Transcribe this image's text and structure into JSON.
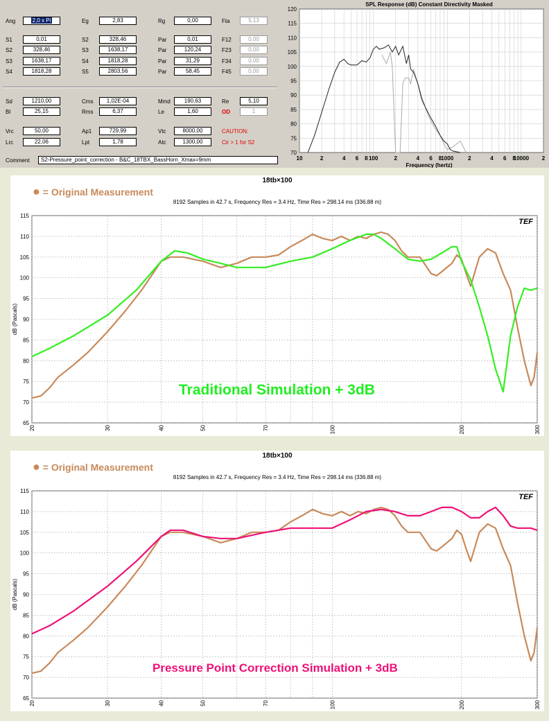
{
  "params": {
    "rows1": [
      {
        "l1": "Ang",
        "v1": "2,0 x Pi",
        "l2": "Eg",
        "v2": "2,83",
        "l3": "Rg",
        "v3": "0,00",
        "l4": "Fta",
        "v4": "5,13"
      },
      {
        "l1": "S1",
        "v1": "0,01",
        "l2": "S2",
        "v2": "328,46",
        "l3": "Par",
        "v3": "0,01",
        "l4": "F12",
        "v4": "0,00"
      },
      {
        "l1": "S2",
        "v1": "328,46",
        "l2": "S3",
        "v2": "1638,17",
        "l3": "Par",
        "v3": "120,24",
        "l4": "F23",
        "v4": "0,00"
      },
      {
        "l1": "S3",
        "v1": "1638,17",
        "l2": "S4",
        "v2": "1818,28",
        "l3": "Par",
        "v3": "31,29",
        "l4": "F34",
        "v4": "0,00"
      },
      {
        "l1": "S4",
        "v1": "1818,28",
        "l2": "S5",
        "v2": "2803,56",
        "l3": "Par",
        "v3": "58,45",
        "l4": "F45",
        "v4": "0,00"
      }
    ],
    "rows2": [
      {
        "l1": "Sd",
        "v1": "1210,00",
        "l2": "Cms",
        "v2": "1,02E-04",
        "l3": "Mmd",
        "v3": "190,63",
        "l4": "Re",
        "v4": "5,10"
      },
      {
        "l1": "Bl",
        "v1": "25,15",
        "l2": "Rms",
        "v2": "6,37",
        "l3": "Le",
        "v3": "1,60",
        "l4": "OD",
        "v4": "1"
      }
    ],
    "rows3": [
      {
        "l1": "Vrc",
        "v1": "50,00",
        "l2": "Ap1",
        "v2": "729,99",
        "l3": "Vtc",
        "v3": "8000,00",
        "l4": "CAUTION:"
      },
      {
        "l1": "Lrc",
        "v1": "22,06",
        "l2": "Lpt",
        "v2": "1,78",
        "l3": "Atc",
        "v3": "1300,00",
        "l4": "Cir > 1 for S2"
      }
    ],
    "comment_label": "Comment",
    "comment": "S2-Pressure_point_correction - B&C_18TBX_BassHorn_Xmax=9mm"
  },
  "colors": {
    "measurement": "#c8895a",
    "traditional": "#33ee22",
    "pressure": "#ee1177",
    "sim_dark": "#222222",
    "sim_light": "#aaaaaa"
  },
  "spl_tag": "TEF",
  "chart_data": [
    {
      "type": "line",
      "title": "SPL Response (dB)   Constant Directivity   Masked",
      "xlabel": "Frequency (hertz)",
      "xscale": "log",
      "xlim": [
        10,
        20000
      ],
      "ylim": [
        70,
        120
      ],
      "yticks": [
        70,
        75,
        80,
        85,
        90,
        95,
        100,
        105,
        110,
        115,
        120
      ],
      "xtick_labels": [
        "10",
        "2",
        "4",
        "6",
        "8",
        "100",
        "2",
        "4",
        "6",
        "8",
        "1000",
        "2",
        "4",
        "6",
        "8",
        "10000",
        "2"
      ],
      "xtick_values": [
        10,
        20,
        40,
        60,
        80,
        100,
        200,
        400,
        600,
        800,
        1000,
        2000,
        4000,
        6000,
        8000,
        10000,
        20000
      ],
      "grid": true,
      "series": [
        {
          "x": [
            13,
            16,
            20,
            25,
            30,
            35,
            40,
            45,
            50,
            60,
            70,
            80,
            90,
            100,
            110,
            120,
            140,
            160,
            180,
            200,
            220,
            250,
            280,
            300,
            320,
            350,
            400,
            450,
            500,
            600,
            700,
            800,
            900,
            1000,
            1100,
            1200,
            1500
          ],
          "y": [
            70,
            76,
            84,
            92,
            98,
            101.5,
            102.5,
            101,
            100.5,
            100.5,
            102,
            101.5,
            103,
            106,
            107,
            106,
            106.5,
            107.5,
            105,
            107,
            104,
            107,
            101,
            104,
            99,
            98,
            94,
            89,
            86,
            82,
            79,
            76,
            74,
            73,
            71,
            70.5,
            70
          ]
        },
        {
          "x": [
            130,
            150,
            160,
            170,
            180,
            200,
            230,
            250,
            270,
            300,
            320,
            350,
            400,
            450,
            500,
            550,
            600,
            700,
            800,
            900,
            1000,
            1200,
            1500,
            1800
          ],
          "y": [
            104,
            101,
            103,
            105,
            100,
            70,
            70,
            94,
            96,
            96,
            94,
            99,
            94,
            88,
            86,
            83,
            81,
            78,
            76,
            73,
            71,
            72,
            74,
            70
          ]
        }
      ]
    },
    {
      "type": "line",
      "title": "18tb×100",
      "subtitle": "8192 Samples in 42.7 s, Frequency Res = 3.4 Hz, Time Res = 298.14 ms (336.88 m)",
      "legend": "= Original Measurement",
      "annotation": "Traditional Simulation + 3dB",
      "ylabel": "dB (Pascals)",
      "xscale": "log",
      "xlim": [
        20,
        300
      ],
      "ylim": [
        65,
        115
      ],
      "yticks": [
        65,
        70,
        75,
        80,
        85,
        90,
        95,
        100,
        105,
        110,
        115
      ],
      "xticks": [
        20,
        30,
        40,
        50,
        70,
        100,
        200,
        300
      ],
      "grid": true,
      "series": [
        {
          "x": [
            20,
            21,
            22,
            23,
            25,
            27,
            30,
            33,
            36,
            40,
            42,
            45,
            50,
            55,
            60,
            65,
            70,
            75,
            80,
            85,
            90,
            95,
            100,
            105,
            110,
            115,
            120,
            125,
            130,
            135,
            140,
            145,
            150,
            160,
            170,
            175,
            180,
            190,
            195,
            200,
            205,
            210,
            220,
            230,
            240,
            250,
            260,
            270,
            280,
            290,
            295,
            300
          ],
          "y": [
            71,
            71.5,
            73.5,
            76,
            79,
            82,
            87,
            92,
            97,
            104,
            105,
            105,
            104,
            102.5,
            103.5,
            105,
            105,
            105.5,
            107.5,
            109,
            110.5,
            109.5,
            109,
            110,
            109,
            110,
            109.5,
            110.5,
            111,
            110.5,
            109,
            106.5,
            105,
            105,
            101,
            100.5,
            101.5,
            103.5,
            105.5,
            104.5,
            101,
            98,
            105,
            107,
            106,
            101,
            97,
            88,
            80,
            74,
            76,
            82
          ]
        },
        {
          "x": [
            20,
            22,
            25,
            30,
            35,
            40,
            43,
            46,
            50,
            55,
            60,
            70,
            80,
            90,
            100,
            110,
            120,
            125,
            130,
            140,
            150,
            160,
            170,
            180,
            190,
            195,
            200,
            210,
            220,
            230,
            240,
            250,
            260,
            270,
            280,
            290,
            300
          ],
          "y": [
            81,
            83,
            86,
            91,
            97,
            104,
            106.5,
            106,
            104.5,
            103.5,
            102.5,
            102.5,
            104,
            105,
            107,
            109,
            110.5,
            110.5,
            109.5,
            107,
            104.5,
            104,
            104.5,
            106,
            107.5,
            107.5,
            104,
            99.5,
            93,
            86,
            78,
            72.5,
            86,
            93,
            97.5,
            97,
            97.5
          ]
        }
      ]
    },
    {
      "type": "line",
      "title": "18tb×100",
      "subtitle": "8192 Samples in 42.7 s, Frequency Res = 3.4 Hz, Time Res = 298.14 ms (336.88 m)",
      "legend": "= Original Measurement",
      "annotation": "Pressure Point Correction Simulation + 3dB",
      "ylabel": "dB (Pascals)",
      "xscale": "log",
      "xlim": [
        20,
        300
      ],
      "ylim": [
        65,
        115
      ],
      "yticks": [
        65,
        70,
        75,
        80,
        85,
        90,
        95,
        100,
        105,
        110,
        115
      ],
      "xticks": [
        20,
        30,
        40,
        50,
        70,
        100,
        200,
        300
      ],
      "grid": true,
      "series": [
        {
          "x": [
            20,
            21,
            22,
            23,
            25,
            27,
            30,
            33,
            36,
            40,
            42,
            45,
            50,
            55,
            60,
            65,
            70,
            75,
            80,
            85,
            90,
            95,
            100,
            105,
            110,
            115,
            120,
            125,
            130,
            135,
            140,
            145,
            150,
            160,
            170,
            175,
            180,
            190,
            195,
            200,
            205,
            210,
            220,
            230,
            240,
            250,
            260,
            270,
            280,
            290,
            295,
            300
          ],
          "y": [
            71,
            71.5,
            73.5,
            76,
            79,
            82,
            87,
            92,
            97,
            104,
            105,
            105,
            104,
            102.5,
            103.5,
            105,
            105,
            105.5,
            107.5,
            109,
            110.5,
            109.5,
            109,
            110,
            109,
            110,
            109.5,
            110.5,
            111,
            110.5,
            109,
            106.5,
            105,
            105,
            101,
            100.5,
            101.5,
            103.5,
            105.5,
            104.5,
            101,
            98,
            105,
            107,
            106,
            101,
            97,
            88,
            80,
            74,
            76,
            82
          ]
        },
        {
          "x": [
            20,
            22,
            25,
            30,
            35,
            40,
            42,
            45,
            50,
            55,
            60,
            70,
            80,
            90,
            100,
            110,
            120,
            130,
            140,
            150,
            160,
            170,
            180,
            190,
            200,
            210,
            220,
            230,
            240,
            250,
            260,
            270,
            280,
            290,
            300
          ],
          "y": [
            80.5,
            82.5,
            86,
            92,
            98,
            104,
            105.5,
            105.5,
            104,
            103.5,
            103.5,
            105,
            106,
            106,
            106,
            108,
            110,
            110.5,
            110,
            109,
            109,
            110,
            111,
            111,
            110,
            108.5,
            108.5,
            110,
            111,
            109,
            106.5,
            106,
            106,
            106,
            105.5
          ]
        }
      ]
    }
  ]
}
